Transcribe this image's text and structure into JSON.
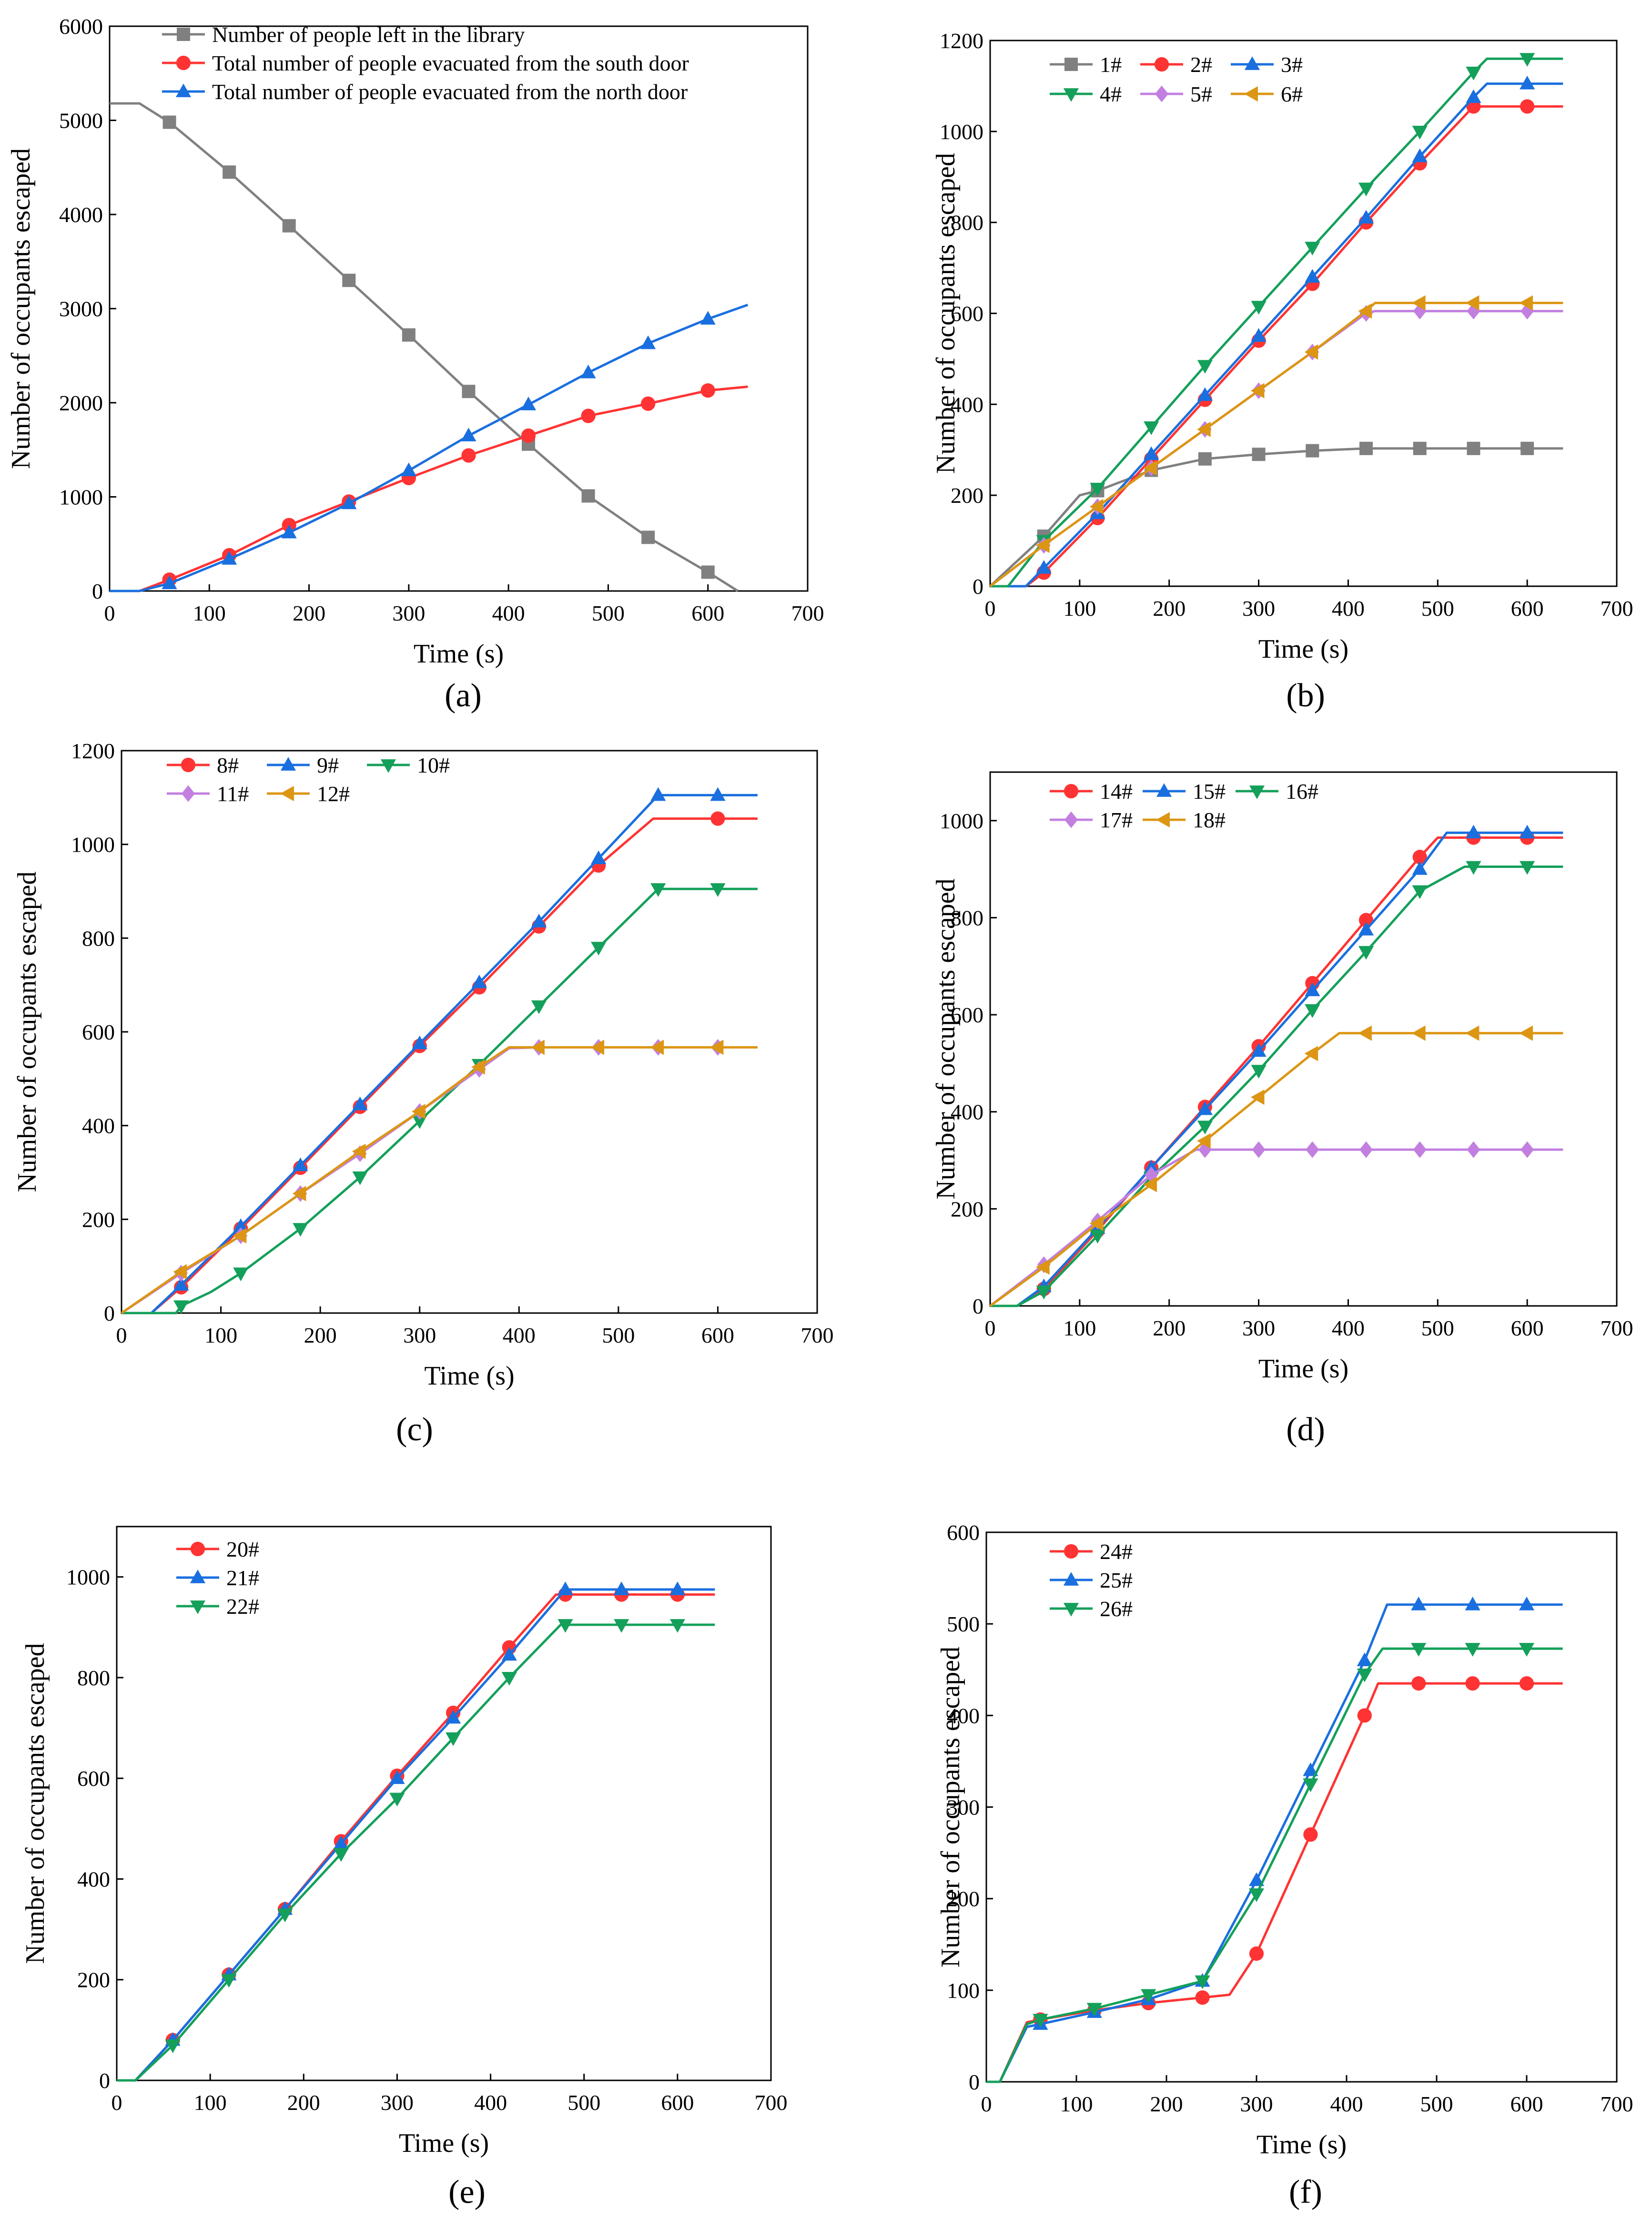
{
  "chart_data": [
    {
      "panel": "(a)",
      "type": "line",
      "xlabel": "Time (s)",
      "ylabel": "Number of occupants escaped",
      "xlim": [
        0,
        700
      ],
      "ylim": [
        0,
        6000
      ],
      "xticks": [
        0,
        100,
        200,
        300,
        400,
        500,
        600,
        700
      ],
      "yticks": [
        0,
        1000,
        2000,
        3000,
        4000,
        5000,
        6000
      ],
      "legend": "top-left",
      "series": [
        {
          "name": "Number of people left in the library",
          "color": "#808080",
          "marker": "square",
          "x": [
            0,
            30,
            60,
            120,
            180,
            240,
            300,
            360,
            420,
            480,
            540,
            600,
            630
          ],
          "y": [
            5180,
            5180,
            4980,
            4450,
            3880,
            3300,
            2720,
            2120,
            1560,
            1010,
            570,
            200,
            0
          ]
        },
        {
          "name": "Total number of people evacuated from the south door",
          "color": "#ff3333",
          "marker": "circle",
          "x": [
            0,
            30,
            60,
            120,
            180,
            240,
            300,
            360,
            420,
            480,
            540,
            600,
            640
          ],
          "y": [
            0,
            0,
            120,
            380,
            700,
            950,
            1200,
            1440,
            1650,
            1860,
            1990,
            2130,
            2170
          ]
        },
        {
          "name": "Total number of people evacuated from the north door",
          "color": "#1a6fdf",
          "marker": "triangle",
          "x": [
            0,
            30,
            60,
            120,
            180,
            240,
            300,
            360,
            420,
            480,
            540,
            600,
            640
          ],
          "y": [
            0,
            0,
            80,
            340,
            620,
            930,
            1280,
            1650,
            1980,
            2320,
            2630,
            2890,
            3040
          ]
        }
      ]
    },
    {
      "panel": "(b)",
      "type": "line",
      "xlabel": "Time (s)",
      "ylabel": "Number of occupants escaped",
      "xlim": [
        0,
        700
      ],
      "ylim": [
        0,
        1200
      ],
      "xticks": [
        0,
        100,
        200,
        300,
        400,
        500,
        600,
        700
      ],
      "yticks": [
        0,
        200,
        400,
        600,
        800,
        1000,
        1200
      ],
      "legend": "top-left",
      "series": [
        {
          "name": "1#",
          "color": "#808080",
          "marker": "square",
          "x": [
            0,
            60,
            100,
            120,
            180,
            240,
            300,
            360,
            420,
            480,
            540,
            600,
            640
          ],
          "y": [
            0,
            110,
            200,
            210,
            255,
            280,
            290,
            298,
            303,
            303,
            303,
            303,
            303
          ]
        },
        {
          "name": "2#",
          "color": "#ff3333",
          "marker": "circle",
          "x": [
            0,
            40,
            60,
            120,
            180,
            240,
            300,
            360,
            420,
            480,
            540,
            600,
            640
          ],
          "y": [
            0,
            0,
            30,
            150,
            280,
            410,
            540,
            665,
            800,
            930,
            1055,
            1055,
            1055
          ]
        },
        {
          "name": "3#",
          "color": "#1a6fdf",
          "marker": "triangle",
          "x": [
            0,
            40,
            60,
            120,
            180,
            240,
            300,
            360,
            420,
            480,
            540,
            555,
            600,
            640
          ],
          "y": [
            0,
            0,
            40,
            160,
            290,
            420,
            550,
            680,
            810,
            945,
            1075,
            1105,
            1105,
            1105
          ]
        },
        {
          "name": "4#",
          "color": "#14a05a",
          "marker": "triangle-down",
          "x": [
            0,
            20,
            60,
            120,
            180,
            240,
            300,
            360,
            420,
            480,
            540,
            555,
            600,
            640
          ],
          "y": [
            0,
            0,
            100,
            215,
            350,
            485,
            615,
            745,
            875,
            1000,
            1130,
            1160,
            1160,
            1160
          ]
        },
        {
          "name": "5#",
          "color": "#c27fe0",
          "marker": "diamond",
          "x": [
            0,
            60,
            120,
            180,
            240,
            300,
            360,
            420,
            430,
            480,
            540,
            600,
            640
          ],
          "y": [
            0,
            90,
            175,
            260,
            345,
            430,
            515,
            600,
            605,
            605,
            605,
            605,
            605
          ]
        },
        {
          "name": "6#",
          "color": "#dc9614",
          "marker": "triangle-left",
          "x": [
            0,
            60,
            120,
            180,
            240,
            300,
            360,
            420,
            430,
            480,
            540,
            600,
            640
          ],
          "y": [
            0,
            90,
            175,
            260,
            345,
            430,
            515,
            605,
            623,
            623,
            623,
            623,
            623
          ]
        }
      ]
    },
    {
      "panel": "(c)",
      "type": "line",
      "xlabel": "Time (s)",
      "ylabel": "Number of occupants escaped",
      "xlim": [
        0,
        700
      ],
      "ylim": [
        0,
        1200
      ],
      "xticks": [
        0,
        100,
        200,
        300,
        400,
        500,
        600,
        700
      ],
      "yticks": [
        0,
        200,
        400,
        600,
        800,
        1000,
        1200
      ],
      "legend": "top-left",
      "series": [
        {
          "name": "8#",
          "color": "#ff3333",
          "marker": "circle",
          "x": [
            0,
            30,
            60,
            120,
            180,
            240,
            300,
            360,
            420,
            480,
            535,
            600,
            640
          ],
          "y": [
            0,
            0,
            55,
            180,
            310,
            440,
            570,
            695,
            825,
            955,
            1055,
            1055,
            1055
          ]
        },
        {
          "name": "9#",
          "color": "#1a6fdf",
          "marker": "triangle",
          "x": [
            0,
            30,
            60,
            120,
            180,
            240,
            300,
            360,
            420,
            480,
            540,
            600,
            640
          ],
          "y": [
            0,
            0,
            60,
            185,
            315,
            445,
            575,
            705,
            835,
            970,
            1105,
            1105,
            1105
          ]
        },
        {
          "name": "10#",
          "color": "#14a05a",
          "marker": "triangle-down",
          "x": [
            0,
            55,
            60,
            90,
            120,
            180,
            240,
            300,
            360,
            420,
            480,
            540,
            600,
            640
          ],
          "y": [
            0,
            0,
            15,
            45,
            85,
            180,
            290,
            410,
            530,
            655,
            780,
            905,
            905,
            905
          ]
        },
        {
          "name": "11#",
          "color": "#c27fe0",
          "marker": "diamond",
          "x": [
            0,
            60,
            120,
            180,
            240,
            300,
            360,
            390,
            420,
            480,
            540,
            600,
            640
          ],
          "y": [
            0,
            85,
            165,
            255,
            340,
            430,
            520,
            565,
            567,
            567,
            567,
            567,
            567
          ]
        },
        {
          "name": "12#",
          "color": "#dc9614",
          "marker": "triangle-left",
          "x": [
            0,
            60,
            120,
            180,
            240,
            300,
            360,
            390,
            420,
            480,
            540,
            600,
            640
          ],
          "y": [
            0,
            88,
            165,
            255,
            345,
            430,
            525,
            567,
            567,
            567,
            567,
            567,
            567
          ]
        }
      ]
    },
    {
      "panel": "(d)",
      "type": "line",
      "xlabel": "Time (s)",
      "ylabel": "Number of occupants escaped",
      "xlim": [
        0,
        700
      ],
      "ylim": [
        0,
        1100
      ],
      "xticks": [
        0,
        100,
        200,
        300,
        400,
        500,
        600,
        700
      ],
      "yticks": [
        0,
        200,
        400,
        600,
        800,
        1000
      ],
      "legend": "top-left",
      "series": [
        {
          "name": "14#",
          "color": "#ff3333",
          "marker": "circle",
          "x": [
            0,
            30,
            60,
            120,
            180,
            240,
            300,
            360,
            420,
            480,
            500,
            540,
            600,
            640
          ],
          "y": [
            0,
            0,
            35,
            155,
            285,
            410,
            535,
            665,
            795,
            925,
            965,
            965,
            965,
            965
          ]
        },
        {
          "name": "15#",
          "color": "#1a6fdf",
          "marker": "triangle",
          "x": [
            0,
            30,
            60,
            120,
            180,
            240,
            300,
            360,
            420,
            480,
            510,
            540,
            600,
            640
          ],
          "y": [
            0,
            0,
            40,
            160,
            285,
            405,
            525,
            650,
            775,
            900,
            975,
            975,
            975,
            975
          ]
        },
        {
          "name": "16#",
          "color": "#14a05a",
          "marker": "triangle-down",
          "x": [
            0,
            30,
            60,
            120,
            180,
            240,
            300,
            360,
            420,
            480,
            530,
            540,
            600,
            640
          ],
          "y": [
            0,
            0,
            30,
            145,
            265,
            370,
            485,
            610,
            730,
            855,
            905,
            905,
            905,
            905
          ]
        },
        {
          "name": "17#",
          "color": "#c27fe0",
          "marker": "diamond",
          "x": [
            0,
            60,
            120,
            180,
            230,
            240,
            300,
            360,
            420,
            480,
            540,
            600,
            640
          ],
          "y": [
            0,
            85,
            175,
            270,
            322,
            322,
            322,
            322,
            322,
            322,
            322,
            322,
            322
          ]
        },
        {
          "name": "18#",
          "color": "#dc9614",
          "marker": "triangle-left",
          "x": [
            0,
            60,
            120,
            180,
            240,
            300,
            360,
            390,
            420,
            480,
            540,
            600,
            640
          ],
          "y": [
            0,
            80,
            170,
            250,
            340,
            430,
            520,
            562,
            562,
            562,
            562,
            562,
            562
          ]
        }
      ]
    },
    {
      "panel": "(e)",
      "type": "line",
      "xlabel": "Time (s)",
      "ylabel": "Number of occupants escaped",
      "xlim": [
        0,
        700
      ],
      "ylim": [
        0,
        1100
      ],
      "xticks": [
        0,
        100,
        200,
        300,
        400,
        500,
        600,
        700
      ],
      "yticks": [
        0,
        200,
        400,
        600,
        800,
        1000
      ],
      "legend": "top-left",
      "series": [
        {
          "name": "20#",
          "color": "#ff3333",
          "marker": "circle",
          "x": [
            0,
            20,
            60,
            120,
            180,
            240,
            300,
            360,
            420,
            470,
            480,
            540,
            600,
            640
          ],
          "y": [
            0,
            0,
            80,
            210,
            340,
            475,
            605,
            730,
            860,
            965,
            965,
            965,
            965,
            965
          ]
        },
        {
          "name": "21#",
          "color": "#1a6fdf",
          "marker": "triangle",
          "x": [
            0,
            20,
            60,
            120,
            180,
            240,
            300,
            360,
            420,
            480,
            540,
            600,
            640
          ],
          "y": [
            0,
            0,
            80,
            210,
            340,
            470,
            600,
            720,
            845,
            975,
            975,
            975,
            975
          ]
        },
        {
          "name": "22#",
          "color": "#14a05a",
          "marker": "triangle-down",
          "x": [
            0,
            20,
            60,
            120,
            180,
            240,
            300,
            360,
            420,
            475,
            480,
            540,
            600,
            640
          ],
          "y": [
            0,
            0,
            70,
            200,
            330,
            450,
            560,
            680,
            800,
            905,
            905,
            905,
            905,
            905
          ]
        }
      ]
    },
    {
      "panel": "(f)",
      "type": "line",
      "xlabel": "Time (s)",
      "ylabel": "Number of occupants escaped",
      "xlim": [
        0,
        700
      ],
      "ylim": [
        0,
        600
      ],
      "xticks": [
        0,
        100,
        200,
        300,
        400,
        500,
        600,
        700
      ],
      "yticks": [
        0,
        100,
        200,
        300,
        400,
        500,
        600
      ],
      "legend": "top-left",
      "series": [
        {
          "name": "24#",
          "color": "#ff3333",
          "marker": "circle",
          "x": [
            0,
            15,
            45,
            60,
            120,
            180,
            240,
            270,
            300,
            360,
            420,
            435,
            480,
            540,
            600,
            640
          ],
          "y": [
            0,
            0,
            65,
            68,
            78,
            86,
            92,
            95,
            140,
            270,
            400,
            435,
            435,
            435,
            435,
            435
          ]
        },
        {
          "name": "25#",
          "color": "#1a6fdf",
          "marker": "triangle",
          "x": [
            0,
            15,
            45,
            60,
            120,
            180,
            240,
            300,
            360,
            420,
            445,
            480,
            540,
            600,
            640
          ],
          "y": [
            0,
            0,
            60,
            63,
            76,
            90,
            110,
            220,
            340,
            460,
            521,
            521,
            521,
            521,
            521
          ]
        },
        {
          "name": "26#",
          "color": "#14a05a",
          "marker": "triangle-down",
          "x": [
            0,
            15,
            45,
            60,
            120,
            180,
            240,
            300,
            360,
            420,
            440,
            480,
            540,
            600,
            640
          ],
          "y": [
            0,
            0,
            63,
            68,
            80,
            95,
            110,
            205,
            325,
            445,
            473,
            473,
            473,
            473,
            473
          ]
        }
      ]
    }
  ]
}
